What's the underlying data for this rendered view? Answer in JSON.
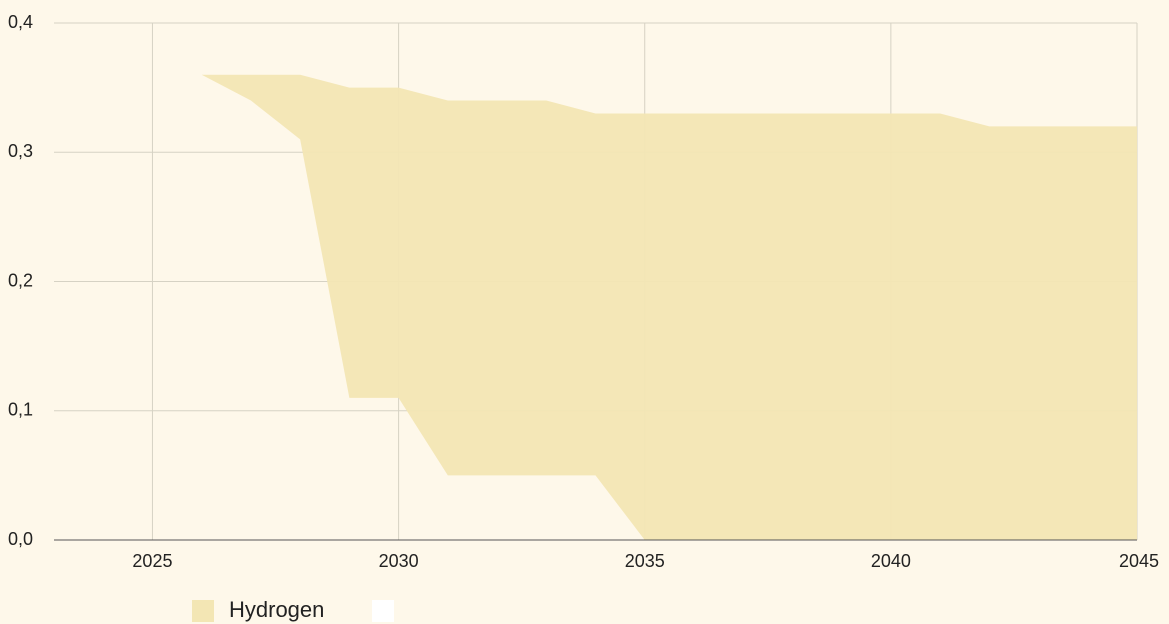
{
  "chart_data": {
    "type": "range-area",
    "x": [
      2023,
      2024,
      2025,
      2026,
      2027,
      2028,
      2029,
      2030,
      2031,
      2032,
      2033,
      2034,
      2035,
      2036,
      2037,
      2038,
      2039,
      2040,
      2041,
      2042,
      2043,
      2044,
      2045
    ],
    "series": [
      {
        "name": "Hydrogen",
        "color": "#f3e6b4",
        "values": [
          0.36,
          0.36,
          0.36,
          0.36,
          0.36,
          0.36,
          0.35,
          0.35,
          0.34,
          0.34,
          0.34,
          0.33,
          0.33,
          0.33,
          0.33,
          0.33,
          0.33,
          0.33,
          0.33,
          0.32,
          0.32,
          0.32,
          0.32
        ],
        "lower": [
          0.36,
          0.36,
          0.36,
          0.36,
          0.34,
          0.31,
          0.11,
          0.11,
          0.05,
          0.05,
          0.05,
          0.05,
          0,
          0,
          0,
          0,
          0,
          0,
          0,
          0,
          0,
          0,
          0
        ]
      }
    ],
    "xlim": [
      2023,
      2045
    ],
    "xticks": [
      2025,
      2030,
      2035,
      2040,
      2045
    ],
    "ylim": [
      0,
      0.4
    ],
    "yticks": [
      {
        "value": 0,
        "label": "0,0"
      },
      {
        "value": 0.1,
        "label": "0,1"
      },
      {
        "value": 0.2,
        "label": "0,2"
      },
      {
        "value": 0.3,
        "label": "0,3"
      },
      {
        "value": 0.4,
        "label": "0,4"
      }
    ],
    "grid": true
  }
}
